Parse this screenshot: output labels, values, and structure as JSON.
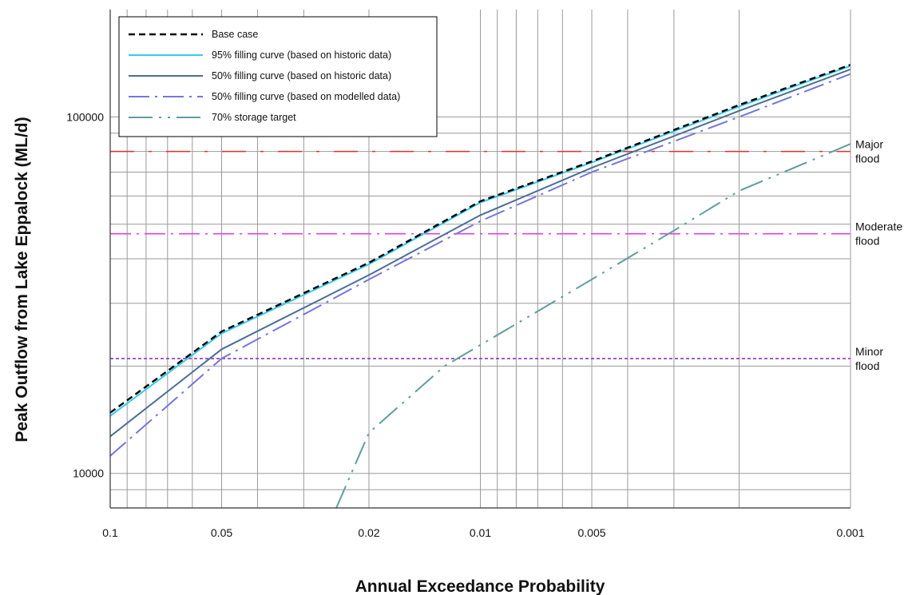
{
  "chart_data": {
    "type": "line",
    "xlabel": "Annual Exceedance Probability",
    "ylabel": "Peak Outflow from Lake Eppalock (ML/d)",
    "x_scale": "log",
    "x_reversed": true,
    "xlim": [
      0.1,
      0.001
    ],
    "y_scale": "log",
    "ylim": [
      8000,
      200000
    ],
    "grid": true,
    "legend_position": "top-left",
    "x_ticks": [
      "0.1",
      "0.05",
      "0.02",
      "0.01",
      "0.005",
      "0.001"
    ],
    "y_ticks": [
      "10000",
      "100000"
    ],
    "series": [
      {
        "name": "Base case",
        "color": "#000000",
        "style": "dashed",
        "x": [
          0.1,
          0.05,
          0.02,
          0.01,
          0.005,
          0.002,
          0.001
        ],
        "y": [
          14800,
          25000,
          39000,
          58000,
          75000,
          108000,
          140000
        ]
      },
      {
        "name": "95% filling curve (based on historic data)",
        "color": "#33ccee",
        "style": "solid",
        "x": [
          0.1,
          0.05,
          0.02,
          0.01,
          0.005,
          0.002,
          0.001
        ],
        "y": [
          14500,
          24700,
          38600,
          57500,
          74500,
          107000,
          139000
        ]
      },
      {
        "name": "50% filling curve (based on historic data)",
        "color": "#4a6f96",
        "style": "solid",
        "x": [
          0.1,
          0.05,
          0.02,
          0.01,
          0.005,
          0.002,
          0.001
        ],
        "y": [
          12700,
          22300,
          36000,
          53000,
          72000,
          104000,
          136000
        ]
      },
      {
        "name": "50% filling curve (based on modelled data)",
        "color": "#7575dd",
        "style": "dash-dot",
        "x": [
          0.1,
          0.05,
          0.02,
          0.01,
          0.005,
          0.002,
          0.001
        ],
        "y": [
          11200,
          21000,
          35000,
          51000,
          70000,
          100000,
          132000
        ]
      },
      {
        "name": "70% storage target",
        "color": "#5f9e9a",
        "style": "dash-dot-dot",
        "x": [
          0.0245,
          0.02,
          0.0125,
          0.005,
          0.003,
          0.002,
          0.001
        ],
        "y": [
          8000,
          13000,
          20000,
          35000,
          48000,
          62000,
          84000
        ]
      }
    ],
    "reference_lines": [
      {
        "label": "Major flood",
        "lines": [
          "Major",
          "flood"
        ],
        "y": 80000,
        "color": "#e03030",
        "style": "long-dash-dot"
      },
      {
        "label": "Moderate flood",
        "lines": [
          "Moderate",
          "flood"
        ],
        "y": 47000,
        "color": "#e040e8",
        "style": "dash-dot"
      },
      {
        "label": "Minor flood",
        "lines": [
          "Minor",
          "flood"
        ],
        "y": 21000,
        "color": "#9a2fc8",
        "style": "short-dash"
      }
    ]
  }
}
